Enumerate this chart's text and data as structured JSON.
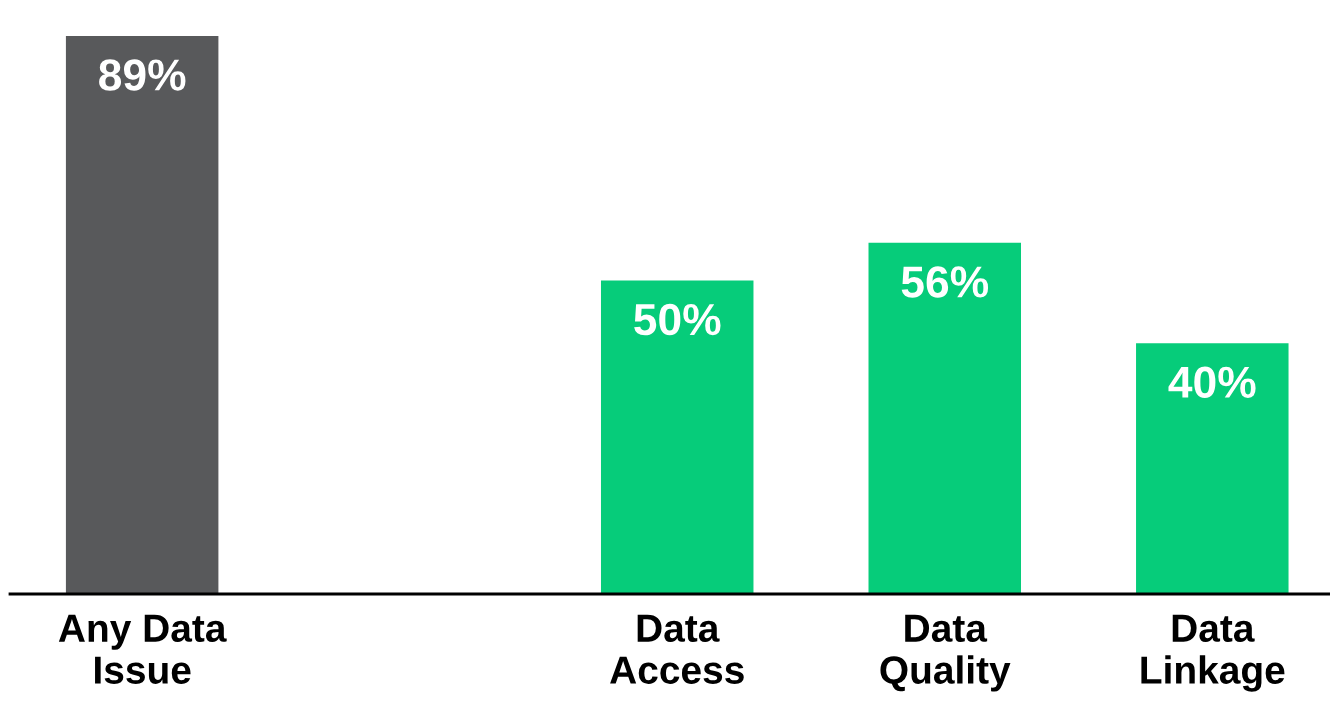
{
  "chart_data": {
    "type": "bar",
    "categories": [
      "Any Data\nIssue",
      null,
      "Data\nAccess",
      "Data\nQuality",
      "Data\nLinkage"
    ],
    "values": [
      89,
      null,
      50,
      56,
      40
    ],
    "colors": [
      "#58595b",
      null,
      "#06cc7a",
      "#06cc7a",
      "#06cc7a"
    ],
    "data_labels": true,
    "value_labels": [
      "89%",
      null,
      "50%",
      "56%",
      "40%"
    ],
    "grid": false,
    "legend": false
  }
}
